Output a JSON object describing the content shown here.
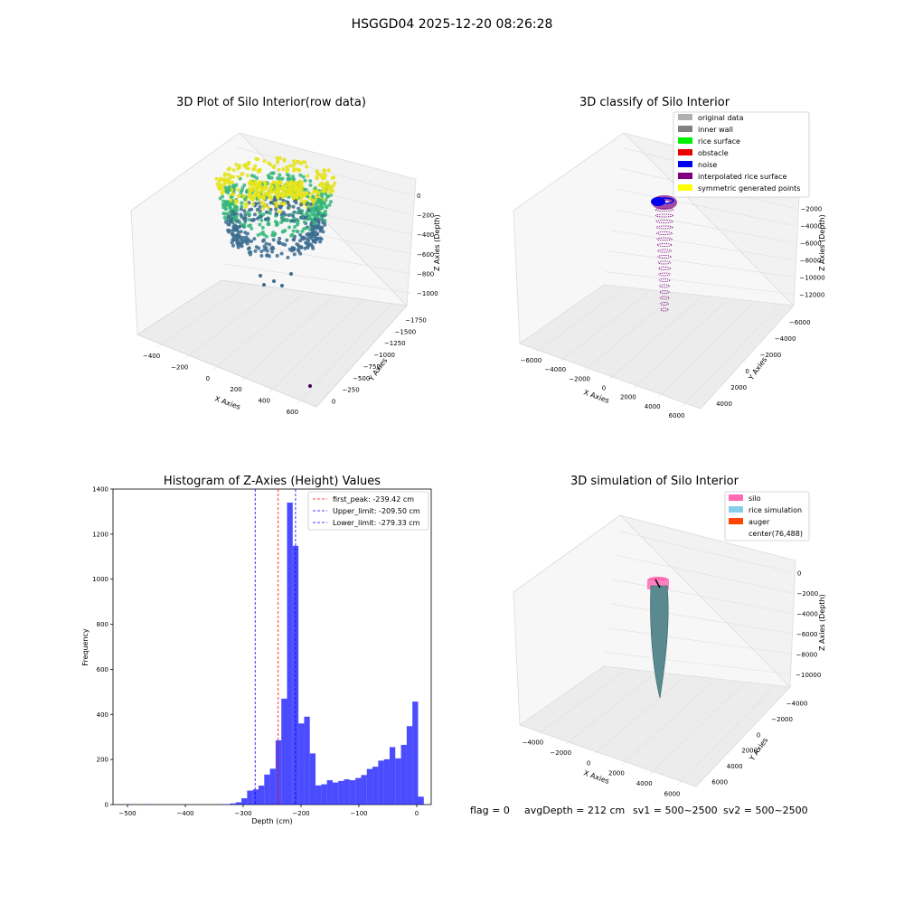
{
  "suptitle": "HSGGD04 2025-12-20 08:26:28",
  "status_line": {
    "flag": "flag = 0",
    "avg_depth": "avgDepth = 212 cm",
    "sv1": "sv1 = 500~2500",
    "sv2": "sv2 = 500~2500"
  },
  "chart_data": [
    {
      "type": "scatter",
      "projection": "3d",
      "title": "3D Plot of Silo Interior(row data)",
      "xlabel": "X Axies",
      "ylabel": "Y Axies",
      "zlabel": "Z Axies (Depth)",
      "x_ticks": [
        "−400",
        "−200",
        "0",
        "200",
        "400",
        "600"
      ],
      "y_ticks": [
        "0",
        "−250",
        "−500",
        "−750",
        "−1000",
        "−1250",
        "−1500",
        "−1750"
      ],
      "z_ticks": [
        "0",
        "−200",
        "−400",
        "−600",
        "−800",
        "−1000"
      ],
      "colors": {
        "high": "#e5e31a",
        "mid": "#35b779",
        "low": "#3b6c8f",
        "outlier": "#440154"
      }
    },
    {
      "type": "scatter",
      "projection": "3d",
      "title": "3D classify of Silo Interior",
      "xlabel": "X Axies",
      "ylabel": "Y Axies",
      "zlabel": "Z Axies (Depth)",
      "x_ticks": [
        "−6000",
        "−4000",
        "−2000",
        "0",
        "2000",
        "4000",
        "6000"
      ],
      "y_ticks": [
        "4000",
        "2000",
        "0",
        "−2000",
        "−4000",
        "−6000"
      ],
      "z_ticks": [
        "0",
        "−2000",
        "−4000",
        "−6000",
        "−8000",
        "−10000",
        "−12000"
      ],
      "legend_position": "top-right",
      "legend": [
        {
          "label": "original data",
          "color": "#b0b0b0"
        },
        {
          "label": "inner wall",
          "color": "#808080"
        },
        {
          "label": "rice surface",
          "color": "#00ee00"
        },
        {
          "label": "obstacle",
          "color": "#ee0000"
        },
        {
          "label": "noise",
          "color": "#0000ee"
        },
        {
          "label": "interpolated rice surface",
          "color": "#800080"
        },
        {
          "label": "symmetric generated points",
          "color": "#ffff00"
        }
      ]
    },
    {
      "type": "bar",
      "title": "Histogram of Z-Axies (Height) Values",
      "xlabel": "Depth (cm)",
      "ylabel": "Frequency",
      "xlim": [
        -525,
        25
      ],
      "ylim": [
        0,
        1400
      ],
      "x_ticks": [
        -500,
        -400,
        -300,
        -200,
        -100,
        0
      ],
      "y_ticks": [
        0,
        200,
        400,
        600,
        800,
        1000,
        1200,
        1400
      ],
      "bar_color": "#0000ff",
      "bin_start": -500,
      "bin_width": 9.85,
      "values": [
        1,
        0,
        0,
        1,
        0,
        0,
        0,
        0,
        0,
        0,
        0,
        0,
        0,
        0,
        0,
        0,
        1,
        2,
        5,
        10,
        28,
        62,
        67,
        84,
        133,
        159,
        285,
        470,
        1340,
        1148,
        360,
        390,
        227,
        85,
        90,
        108,
        98,
        105,
        112,
        108,
        118,
        131,
        158,
        168,
        195,
        201,
        255,
        205,
        265,
        348,
        457,
        35
      ],
      "vlines": [
        {
          "label": "first_peak: -239.42 cm",
          "x": -239.42,
          "color": "#ff0000"
        },
        {
          "label": "Upper_limit: -209.50 cm",
          "x": -209.5,
          "color": "#0000ff"
        },
        {
          "label": "Lower_limit: -279.33 cm",
          "x": -279.33,
          "color": "#0000ff"
        }
      ],
      "legend_position": "top-right"
    },
    {
      "type": "scatter",
      "projection": "3d",
      "title": "3D simulation of Silo Interior",
      "xlabel": "X Axies",
      "ylabel": "Y Axies",
      "zlabel": "Z Axies (Depth)",
      "x_ticks": [
        "−4000",
        "−2000",
        "0",
        "2000",
        "4000",
        "6000"
      ],
      "y_ticks": [
        "6000",
        "4000",
        "2000",
        "0",
        "−2000",
        "−4000"
      ],
      "z_ticks": [
        "0",
        "−2000",
        "−4000",
        "−6000",
        "−8000",
        "−10000"
      ],
      "legend_position": "top-right",
      "legend": [
        {
          "label": "silo",
          "color": "#ff69b4"
        },
        {
          "label": "rice simulation",
          "color": "#87ceeb"
        },
        {
          "label": "auger",
          "color": "#ff4500"
        },
        {
          "label": "center(76,488)",
          "color": ""
        }
      ]
    }
  ]
}
